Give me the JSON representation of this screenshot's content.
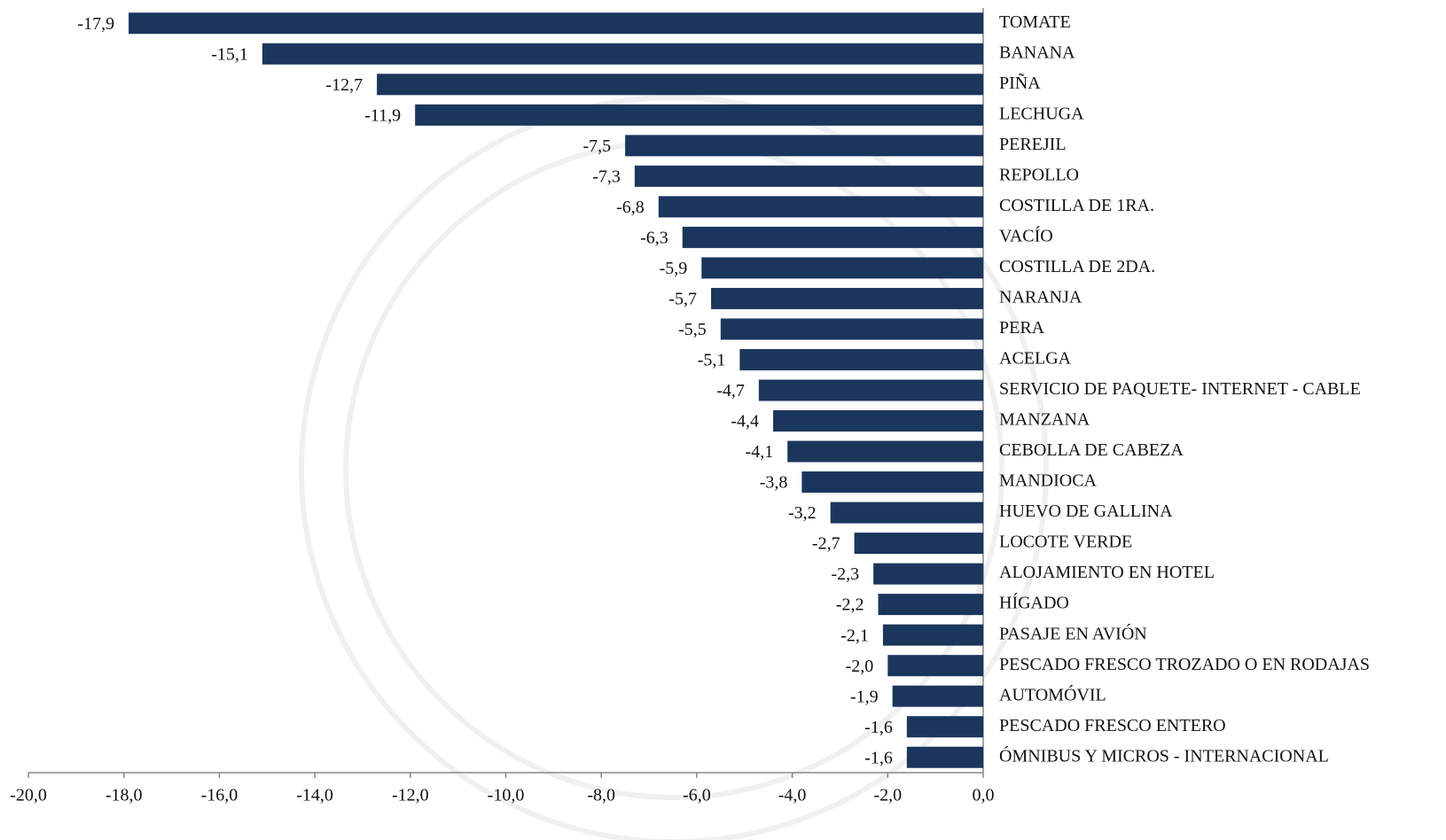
{
  "chart_data": {
    "type": "bar",
    "orientation": "horizontal",
    "categories": [
      "TOMATE",
      "BANANA",
      "PIÑA",
      "LECHUGA",
      "PEREJIL",
      "REPOLLO",
      "COSTILLA DE 1RA.",
      "VACÍO",
      "COSTILLA DE 2DA.",
      "NARANJA",
      "PERA",
      "ACELGA",
      "SERVICIO DE PAQUETE- INTERNET - CABLE",
      "MANZANA",
      "CEBOLLA DE CABEZA",
      "MANDIOCA",
      "HUEVO DE GALLINA",
      "LOCOTE VERDE",
      "ALOJAMIENTO EN HOTEL",
      "HÍGADO",
      "PASAJE EN AVIÓN",
      "PESCADO FRESCO TROZADO O EN RODAJAS",
      "AUTOMÓVIL",
      "PESCADO FRESCO ENTERO",
      "ÓMNIBUS Y MICROS - INTERNACIONAL"
    ],
    "values": [
      -17.9,
      -15.1,
      -12.7,
      -11.9,
      -7.5,
      -7.3,
      -6.8,
      -6.3,
      -5.9,
      -5.7,
      -5.5,
      -5.1,
      -4.7,
      -4.4,
      -4.1,
      -3.8,
      -3.2,
      -2.7,
      -2.3,
      -2.2,
      -2.1,
      -2.0,
      -1.9,
      -1.6,
      -1.6
    ],
    "value_labels": [
      "-17,9",
      "-15,1",
      "-12,7",
      "-11,9",
      "-7,5",
      "-7,3",
      "-6,8",
      "-6,3",
      "-5,9",
      "-5,7",
      "-5,5",
      "-5,1",
      "-4,7",
      "-4,4",
      "-4,1",
      "-3,8",
      "-3,2",
      "-2,7",
      "-2,3",
      "-2,2",
      "-2,1",
      "-2,0",
      "-1,9",
      "-1,6",
      "-1,6"
    ],
    "color": "#1b365d",
    "xlim": [
      -20,
      0
    ],
    "xticks": [
      {
        "value": -20,
        "label": "-20,0"
      },
      {
        "value": -18,
        "label": "-18,0"
      },
      {
        "value": -16,
        "label": "-16,0"
      },
      {
        "value": -14,
        "label": "-14,0"
      },
      {
        "value": -12,
        "label": "-12,0"
      },
      {
        "value": -10,
        "label": "-10,0"
      },
      {
        "value": -8,
        "label": "-8,0"
      },
      {
        "value": -6,
        "label": "-6,0"
      },
      {
        "value": -4,
        "label": "-4,0"
      },
      {
        "value": -2,
        "label": "-2,0"
      },
      {
        "value": 0,
        "label": "0,0"
      }
    ],
    "grid": false
  }
}
